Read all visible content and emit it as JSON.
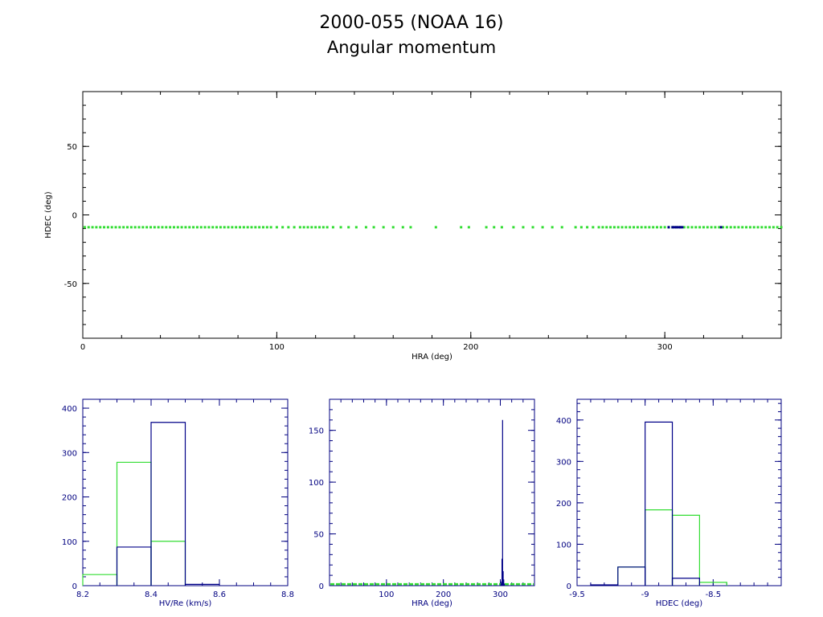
{
  "header": {
    "title": "2000-055 (NOAA 16)",
    "subtitle": "Angular momentum"
  },
  "colors": {
    "axis_black": "#000000",
    "axis_navy": "#000080",
    "series_green": "#33dd33",
    "series_blue": "#000088"
  },
  "chart_data": [
    {
      "id": "scatter",
      "type": "scatter",
      "xlabel": "HRA (deg)",
      "ylabel": "HDEC (deg)",
      "xlim": [
        0,
        360
      ],
      "ylim": [
        -90,
        90
      ],
      "xticks": [
        0,
        100,
        200,
        300
      ],
      "yticks": [
        -50,
        0,
        50
      ],
      "series": [
        {
          "color": "green",
          "y": -9,
          "x": [
            1,
            3,
            5,
            7,
            9,
            11,
            13,
            15,
            17,
            19,
            21,
            23,
            25,
            27,
            29,
            31,
            33,
            35,
            37,
            39,
            41,
            43,
            45,
            47,
            49,
            51,
            53,
            55,
            57,
            59,
            61,
            63,
            65,
            67,
            69,
            71,
            73,
            75,
            77,
            79,
            81,
            83,
            85,
            87,
            89,
            91,
            93,
            95,
            97,
            100,
            103,
            106,
            109,
            112,
            114,
            116,
            118,
            120,
            122,
            124,
            126,
            129,
            133,
            137,
            141,
            146,
            150,
            155,
            160,
            165,
            169,
            182,
            195,
            199,
            208,
            212,
            216,
            222,
            227,
            232,
            237,
            242,
            247,
            254,
            257,
            260,
            263,
            266,
            268,
            270,
            272,
            274,
            276,
            278,
            280,
            282,
            284,
            286,
            288,
            290,
            292,
            294,
            296,
            298,
            300,
            302,
            304,
            306,
            308,
            310,
            312,
            314,
            316,
            318,
            320,
            322,
            324,
            326,
            328,
            330,
            332,
            334,
            336,
            338,
            340,
            342,
            344,
            346,
            348,
            350,
            352,
            354,
            356,
            358,
            360
          ]
        },
        {
          "color": "blue",
          "y": -9,
          "x": [
            302,
            304,
            305,
            306,
            307,
            308,
            309,
            329
          ]
        }
      ]
    },
    {
      "id": "hist_hv",
      "type": "bar",
      "xlabel": "HV/Re (km/s)",
      "xlim": [
        8.2,
        8.8
      ],
      "ylim": [
        0,
        420
      ],
      "xticks": [
        8.2,
        8.4,
        8.6,
        8.8
      ],
      "xtick_labels": [
        "8.2",
        "8.4",
        "8.6",
        "8.8"
      ],
      "yticks": [
        0,
        100,
        200,
        300,
        400
      ],
      "bin_edges": [
        8.2,
        8.3,
        8.4,
        8.5,
        8.6,
        8.7,
        8.8
      ],
      "series": [
        {
          "color": "green",
          "values": [
            25,
            278,
            100,
            0,
            0,
            0
          ]
        },
        {
          "color": "blue",
          "values": [
            0,
            87,
            368,
            3,
            0,
            0
          ]
        }
      ]
    },
    {
      "id": "hist_hra",
      "type": "bar",
      "xlabel": "HRA (deg)",
      "xlim": [
        0,
        360
      ],
      "ylim": [
        0,
        180
      ],
      "xticks": [
        100,
        200,
        300
      ],
      "xtick_labels": [
        "100",
        "200",
        "300"
      ],
      "yticks": [
        0,
        50,
        100,
        150
      ],
      "spikes_blue": [
        [
          301,
          2
        ],
        [
          302,
          4
        ],
        [
          303,
          26
        ],
        [
          304,
          160
        ],
        [
          305,
          14
        ],
        [
          306,
          6
        ],
        [
          307,
          2
        ]
      ],
      "green_baseline": 1.5
    },
    {
      "id": "hist_hdec",
      "type": "bar",
      "xlabel": "HDEC (deg)",
      "xlim": [
        -9.5,
        -8.0
      ],
      "ylim": [
        0,
        450
      ],
      "xticks": [
        -9.5,
        -9,
        -8.5
      ],
      "xtick_labels": [
        "-9.5",
        "-9",
        "-8.5"
      ],
      "yticks": [
        0,
        100,
        200,
        300,
        400
      ],
      "bin_edges": [
        -9.4,
        -9.2,
        -9.0,
        -8.8,
        -8.6,
        -8.4
      ],
      "series": [
        {
          "color": "green",
          "values": [
            0,
            45,
            183,
            170,
            8
          ]
        },
        {
          "color": "blue",
          "values": [
            2,
            45,
            395,
            18,
            0
          ]
        }
      ]
    }
  ]
}
